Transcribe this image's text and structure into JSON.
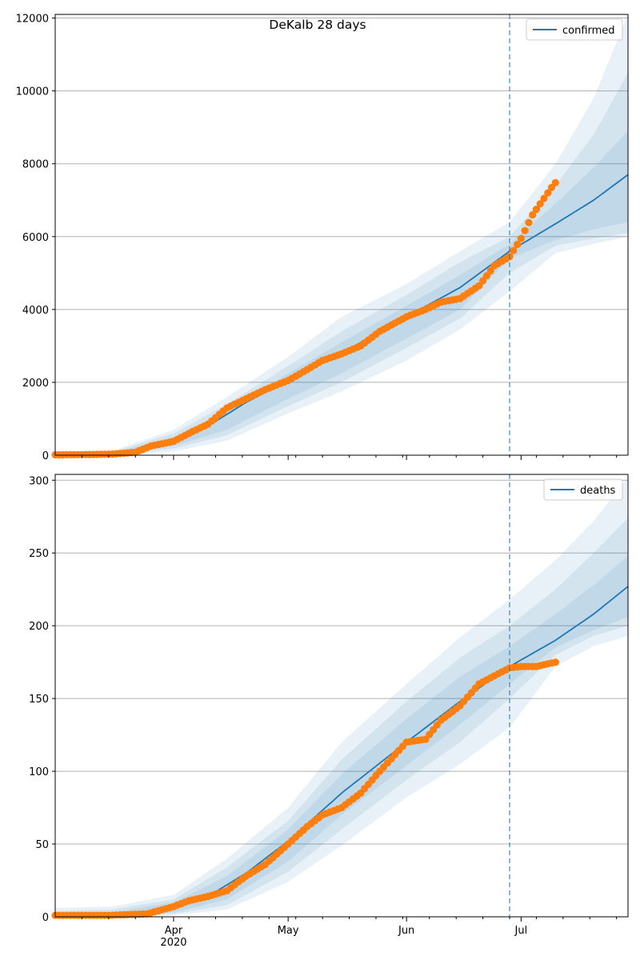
{
  "figure": {
    "title": "DeKalb 28 days"
  },
  "colors": {
    "model": "#1f77b4",
    "observed": "#ff7f0e",
    "band": "#1f77b4",
    "grid": "#b0b0b0",
    "forecast_line": "#1f77b4"
  },
  "x_axis": {
    "month_ticks": [
      {
        "label": "Apr",
        "date": "2020-04-01"
      },
      {
        "label": "May",
        "date": "2020-05-01"
      },
      {
        "label": "Jun",
        "date": "2020-06-01"
      },
      {
        "label": "Jul",
        "date": "2020-07-01"
      }
    ],
    "year_label": "2020"
  },
  "chart_data": [
    {
      "type": "line",
      "title": "DeKalb 28 days",
      "xlabel": "",
      "ylabel": "",
      "x_range": [
        "2020-03-01",
        "2020-07-29"
      ],
      "ylim": [
        0,
        12100
      ],
      "yticks": [
        0,
        2000,
        4000,
        6000,
        8000,
        10000,
        12000
      ],
      "forecast_start": "2020-06-28",
      "legend": {
        "entries": [
          "confirmed"
        ],
        "placement": "top-right"
      },
      "grid": "horizontal",
      "series": [
        {
          "name": "confirmed",
          "kind": "model-line",
          "x": [
            "2020-03-01",
            "2020-03-16",
            "2020-03-25",
            "2020-04-01",
            "2020-04-10",
            "2020-04-20",
            "2020-05-01",
            "2020-05-15",
            "2020-06-01",
            "2020-06-15",
            "2020-06-28",
            "2020-07-10",
            "2020-07-20",
            "2020-07-29"
          ],
          "y": [
            0,
            30,
            150,
            380,
            800,
            1450,
            2050,
            2800,
            3800,
            4600,
            5600,
            6350,
            7000,
            7700
          ]
        },
        {
          "kind": "observed",
          "x": [
            "2020-03-01",
            "2020-03-08",
            "2020-03-16",
            "2020-03-22",
            "2020-03-26",
            "2020-04-01",
            "2020-04-06",
            "2020-04-10",
            "2020-04-15",
            "2020-04-20",
            "2020-04-25",
            "2020-05-01",
            "2020-05-06",
            "2020-05-10",
            "2020-05-15",
            "2020-05-20",
            "2020-05-25",
            "2020-06-01",
            "2020-06-06",
            "2020-06-10",
            "2020-06-15",
            "2020-06-20",
            "2020-06-24",
            "2020-06-28",
            "2020-07-01",
            "2020-07-04",
            "2020-07-07",
            "2020-07-09",
            "2020-07-10"
          ],
          "y": [
            10,
            15,
            30,
            80,
            250,
            380,
            650,
            850,
            1300,
            1550,
            1800,
            2050,
            2350,
            2600,
            2780,
            3000,
            3400,
            3800,
            4000,
            4200,
            4300,
            4650,
            5200,
            5450,
            5950,
            6600,
            7050,
            7350,
            7480
          ]
        }
      ],
      "bands_upper": [
        [
          "2020-03-01",
          "2020-03-16",
          "2020-04-01",
          "2020-04-15",
          "2020-05-01",
          "2020-05-15",
          "2020-06-01",
          "2020-06-15",
          "2020-06-28",
          "2020-07-10",
          "2020-07-20",
          "2020-07-29"
        ],
        [
          30,
          120,
          700,
          1600,
          2700,
          3800,
          4700,
          5600,
          6400,
          8000,
          9800,
          12100
        ],
        [
          20,
          90,
          600,
          1400,
          2450,
          3400,
          4400,
          5300,
          6000,
          7400,
          8800,
          10500
        ],
        [
          15,
          60,
          500,
          1200,
          2250,
          3100,
          4100,
          4950,
          5800,
          6900,
          7900,
          8900
        ]
      ],
      "bands_lower": [
        [
          0,
          5,
          250,
          700,
          1550,
          2250,
          3200,
          4000,
          5400,
          5900,
          6200,
          6400
        ],
        [
          0,
          0,
          180,
          550,
          1350,
          2000,
          2950,
          3750,
          5000,
          5750,
          5950,
          6100
        ],
        [
          0,
          0,
          100,
          400,
          1150,
          1750,
          2600,
          3450,
          4500,
          5550,
          5800,
          6000
        ]
      ]
    },
    {
      "type": "line",
      "title": "",
      "xlabel": "",
      "ylabel": "",
      "x_range": [
        "2020-03-01",
        "2020-07-29"
      ],
      "ylim": [
        0,
        304
      ],
      "yticks": [
        0,
        50,
        100,
        150,
        200,
        250,
        300
      ],
      "forecast_start": "2020-06-28",
      "legend": {
        "entries": [
          "deaths"
        ],
        "placement": "top-right"
      },
      "grid": "horizontal",
      "series": [
        {
          "name": "deaths",
          "kind": "model-line",
          "x": [
            "2020-03-01",
            "2020-03-16",
            "2020-03-25",
            "2020-04-01",
            "2020-04-10",
            "2020-04-20",
            "2020-05-01",
            "2020-05-15",
            "2020-06-01",
            "2020-06-15",
            "2020-06-28",
            "2020-07-10",
            "2020-07-20",
            "2020-07-29"
          ],
          "y": [
            0,
            0.5,
            2,
            6,
            14,
            30,
            52,
            85,
            120,
            148,
            172,
            190,
            208,
            227
          ]
        },
        {
          "kind": "observed",
          "x": [
            "2020-03-01",
            "2020-03-15",
            "2020-03-25",
            "2020-04-01",
            "2020-04-05",
            "2020-04-10",
            "2020-04-15",
            "2020-04-20",
            "2020-04-25",
            "2020-05-01",
            "2020-05-06",
            "2020-05-10",
            "2020-05-15",
            "2020-05-20",
            "2020-05-25",
            "2020-06-01",
            "2020-06-06",
            "2020-06-10",
            "2020-06-15",
            "2020-06-20",
            "2020-06-25",
            "2020-06-28",
            "2020-07-01",
            "2020-07-05",
            "2020-07-10"
          ],
          "y": [
            1,
            1,
            2,
            7,
            11,
            14,
            18,
            28,
            36,
            50,
            62,
            70,
            75,
            85,
            100,
            120,
            122,
            135,
            145,
            160,
            167,
            171,
            172,
            172,
            175
          ]
        }
      ],
      "bands_upper": [
        [
          "2020-03-01",
          "2020-03-16",
          "2020-04-01",
          "2020-04-15",
          "2020-05-01",
          "2020-05-15",
          "2020-06-01",
          "2020-06-15",
          "2020-06-28",
          "2020-07-10",
          "2020-07-20",
          "2020-07-29"
        ],
        [
          6,
          7,
          15,
          40,
          75,
          120,
          160,
          192,
          218,
          245,
          272,
          302
        ],
        [
          4,
          5,
          12,
          34,
          66,
          108,
          148,
          178,
          200,
          225,
          250,
          274
        ],
        [
          2,
          3,
          10,
          28,
          60,
          98,
          136,
          165,
          186,
          208,
          228,
          248
        ]
      ],
      "bands_lower": [
        [
          0,
          0,
          3,
          12,
          38,
          70,
          104,
          132,
          160,
          185,
          197,
          206
        ],
        [
          0,
          0,
          2,
          8,
          31,
          60,
          94,
          120,
          150,
          180,
          193,
          200
        ],
        [
          0,
          0,
          1,
          5,
          24,
          49,
          82,
          105,
          130,
          172,
          186,
          193
        ]
      ]
    }
  ]
}
